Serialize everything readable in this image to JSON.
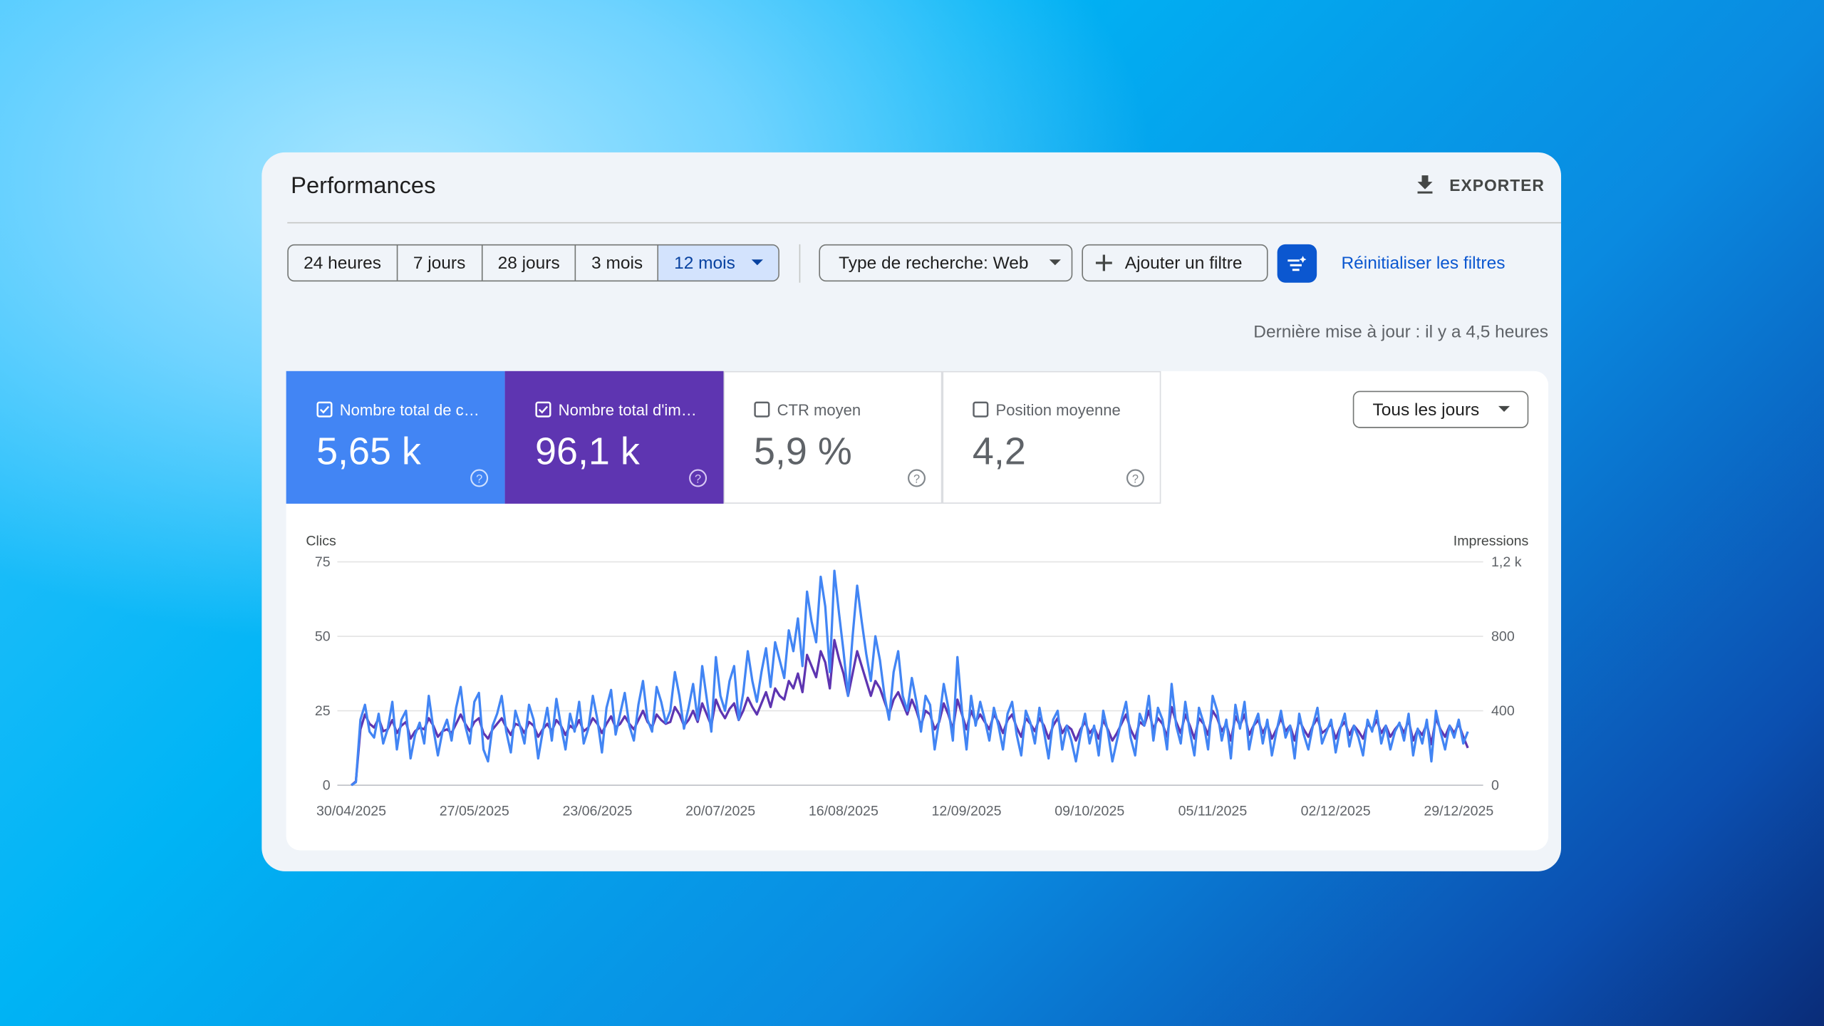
{
  "header": {
    "title": "Performances",
    "export": "EXPORTER"
  },
  "filters": {
    "periods": [
      "24 heures",
      "7 jours",
      "28 jours",
      "3 mois",
      "12 mois"
    ],
    "search_type": "Type de recherche: Web",
    "add_filter": "Ajouter un filtre",
    "reset": "Réinitialiser les filtres"
  },
  "last_update": "Dernière mise à jour : il y a 4,5 heures",
  "metrics": [
    {
      "label": "Nombre total de c…",
      "value": "5,65 k"
    },
    {
      "label": "Nombre total d'im…",
      "value": "96,1 k"
    },
    {
      "label": "CTR moyen",
      "value": "5,9 %"
    },
    {
      "label": "Position moyenne",
      "value": "4,2"
    }
  ],
  "day_filter": "Tous les jours",
  "chart_data": {
    "type": "line",
    "y_label": "Clics",
    "y2_label": "Impressions",
    "grid": true,
    "ylim": [
      0,
      75
    ],
    "yticks": [
      0,
      25,
      50,
      75
    ],
    "y2lim": [
      0,
      1200
    ],
    "y2ticks": [
      0,
      400,
      800,
      {
        "value": 1200,
        "label": "1,2 k"
      }
    ],
    "categories": [
      "30/04/2025",
      null,
      null,
      null,
      null,
      null,
      null,
      null,
      null,
      null,
      null,
      null,
      null,
      null,
      null,
      null,
      null,
      null,
      null,
      null,
      null,
      null,
      null,
      null,
      null,
      null,
      null,
      "27/05/2025",
      null,
      null,
      null,
      null,
      null,
      null,
      null,
      null,
      null,
      null,
      null,
      null,
      null,
      null,
      null,
      null,
      null,
      null,
      null,
      null,
      null,
      null,
      null,
      null,
      null,
      null,
      "23/06/2025",
      null,
      null,
      null,
      null,
      null,
      null,
      null,
      null,
      null,
      null,
      null,
      null,
      null,
      null,
      null,
      null,
      null,
      null,
      null,
      null,
      null,
      null,
      null,
      null,
      null,
      null,
      "20/07/2025",
      null,
      null,
      null,
      null,
      null,
      null,
      null,
      null,
      null,
      null,
      null,
      null,
      null,
      null,
      null,
      null,
      null,
      null,
      null,
      null,
      null,
      null,
      null,
      null,
      null,
      null,
      "16/08/2025",
      null,
      null,
      null,
      null,
      null,
      null,
      null,
      null,
      null,
      null,
      null,
      null,
      null,
      null,
      null,
      null,
      null,
      null,
      null,
      null,
      null,
      null,
      null,
      null,
      null,
      null,
      "12/09/2025",
      null,
      null,
      null,
      null,
      null,
      null,
      null,
      null,
      null,
      null,
      null,
      null,
      null,
      null,
      null,
      null,
      null,
      null,
      null,
      null,
      null,
      null,
      null,
      null,
      null,
      null,
      "09/10/2025",
      null,
      null,
      null,
      null,
      null,
      null,
      null,
      null,
      null,
      null,
      null,
      null,
      null,
      null,
      null,
      null,
      null,
      null,
      null,
      null,
      null,
      null,
      null,
      null,
      null,
      null,
      "05/11/2025",
      null,
      null,
      null,
      null,
      null,
      null,
      null,
      null,
      null,
      null,
      null,
      null,
      null,
      null,
      null,
      null,
      null,
      null,
      null,
      null,
      null,
      null,
      null,
      null,
      null,
      null,
      "02/12/2025",
      null,
      null,
      null,
      null,
      null,
      null,
      null,
      null,
      null,
      null,
      null,
      null,
      null,
      null,
      null,
      null,
      null,
      null,
      null,
      null,
      null,
      null,
      null,
      null,
      null,
      null,
      "29/12/2025",
      null,
      null
    ],
    "series": [
      {
        "color": "#5e35b1",
        "axis": "y2",
        "values": [
          0,
          20,
          300,
          380,
          330,
          310,
          360,
          290,
          300,
          350,
          280,
          320,
          340,
          250,
          290,
          310,
          300,
          360,
          320,
          260,
          290,
          300,
          280,
          330,
          380,
          330,
          290,
          340,
          360,
          280,
          250,
          300,
          330,
          360,
          310,
          270,
          330,
          320,
          280,
          340,
          320,
          260,
          300,
          330,
          290,
          350,
          320,
          270,
          320,
          300,
          350,
          290,
          310,
          360,
          330,
          280,
          330,
          370,
          310,
          330,
          370,
          330,
          300,
          350,
          400,
          340,
          310,
          380,
          350,
          330,
          340,
          420,
          380,
          320,
          350,
          400,
          340,
          440,
          380,
          320,
          460,
          400,
          360,
          410,
          440,
          350,
          400,
          470,
          420,
          380,
          440,
          500,
          420,
          520,
          480,
          460,
          560,
          520,
          600,
          500,
          700,
          640,
          580,
          720,
          660,
          520,
          780,
          680,
          600,
          480,
          600,
          720,
          640,
          560,
          480,
          560,
          520,
          450,
          380,
          460,
          500,
          440,
          380,
          460,
          400,
          320,
          400,
          380,
          300,
          340,
          440,
          380,
          300,
          460,
          380,
          300,
          400,
          340,
          380,
          340,
          300,
          380,
          340,
          280,
          350,
          380,
          310,
          260,
          360,
          330,
          290,
          360,
          320,
          250,
          320,
          360,
          280,
          320,
          300,
          240,
          300,
          340,
          280,
          310,
          250,
          350,
          300,
          240,
          280,
          330,
          380,
          300,
          250,
          340,
          320,
          400,
          300,
          360,
          330,
          260,
          420,
          340,
          280,
          380,
          320,
          250,
          360,
          330,
          270,
          400,
          360,
          290,
          330,
          240,
          370,
          320,
          380,
          270,
          320,
          350,
          280,
          330,
          250,
          300,
          360,
          290,
          320,
          240,
          350,
          300,
          260,
          320,
          360,
          280,
          300,
          330,
          250,
          310,
          340,
          270,
          320,
          290,
          250,
          330,
          300,
          350,
          280,
          320,
          260,
          300,
          330,
          280,
          350,
          240,
          300,
          270,
          330,
          220,
          360,
          300,
          260,
          320,
          280,
          330,
          260,
          200
        ]
      },
      {
        "color": "#4285f4",
        "values": [
          0,
          1,
          22,
          27,
          18,
          16,
          24,
          14,
          19,
          28,
          12,
          22,
          25,
          9,
          17,
          21,
          14,
          30,
          19,
          10,
          18,
          22,
          15,
          26,
          33,
          20,
          14,
          28,
          31,
          12,
          8,
          20,
          24,
          30,
          18,
          11,
          25,
          20,
          14,
          27,
          22,
          9,
          18,
          26,
          15,
          29,
          20,
          12,
          24,
          18,
          28,
          14,
          19,
          30,
          22,
          11,
          26,
          32,
          17,
          24,
          31,
          20,
          15,
          27,
          35,
          22,
          18,
          33,
          28,
          21,
          25,
          38,
          30,
          19,
          26,
          34,
          22,
          40,
          29,
          18,
          43,
          30,
          25,
          35,
          40,
          22,
          31,
          45,
          35,
          28,
          38,
          46,
          33,
          48,
          42,
          36,
          52,
          45,
          56,
          40,
          65,
          55,
          48,
          70,
          60,
          38,
          72,
          58,
          45,
          30,
          50,
          67,
          55,
          44,
          35,
          50,
          42,
          30,
          22,
          38,
          45,
          30,
          25,
          36,
          28,
          18,
          30,
          27,
          12,
          22,
          34,
          26,
          15,
          43,
          25,
          12,
          30,
          20,
          28,
          22,
          15,
          26,
          20,
          12,
          24,
          28,
          17,
          10,
          25,
          21,
          14,
          26,
          18,
          9,
          22,
          25,
          12,
          20,
          15,
          8,
          17,
          24,
          14,
          20,
          10,
          25,
          18,
          8,
          15,
          22,
          28,
          16,
          10,
          24,
          20,
          30,
          15,
          26,
          22,
          12,
          34,
          20,
          14,
          28,
          18,
          10,
          26,
          21,
          12,
          30,
          25,
          15,
          22,
          9,
          27,
          19,
          28,
          12,
          20,
          24,
          14,
          22,
          10,
          18,
          25,
          16,
          20,
          9,
          24,
          17,
          12,
          20,
          26,
          14,
          18,
          22,
          11,
          19,
          24,
          13,
          20,
          16,
          10,
          22,
          18,
          25,
          14,
          20,
          12,
          18,
          21,
          15,
          24,
          10,
          19,
          14,
          22,
          8,
          25,
          18,
          12,
          20,
          16,
          22,
          14,
          18
        ]
      }
    ]
  }
}
